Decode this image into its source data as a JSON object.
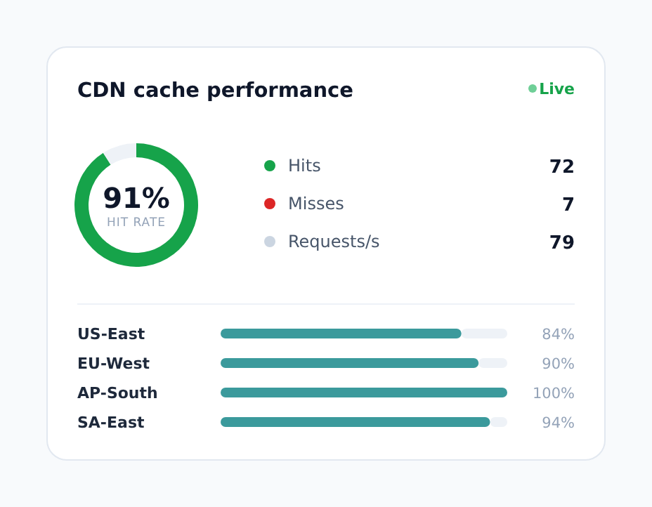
{
  "chart_data": [
    {
      "type": "donut",
      "title": "CDN cache performance",
      "categories": [
        null,
        null
      ],
      "values": [
        91,
        9
      ],
      "colors": [
        "#16a34a",
        "#eef2f7"
      ],
      "annotations": [
        "Live",
        "91%",
        "HIT RATE"
      ]
    },
    {
      "type": "other",
      "categories": [
        "Hits",
        "Misses",
        "Requests/s"
      ],
      "values": [
        72,
        7,
        79
      ],
      "colors": [
        "#16a34a",
        "#dc2626",
        "#cbd5e1"
      ],
      "data_labels": true
    },
    {
      "type": "bar",
      "orientation": "horizontal",
      "categories": [
        "US-East",
        "EU-West",
        "AP-South",
        "SA-East"
      ],
      "values": [
        84,
        90,
        100,
        94
      ],
      "value_labels": [
        "84%",
        "90%",
        "100%",
        "94%"
      ],
      "color": "#3b9a9c",
      "xlim": [
        0,
        100
      ]
    }
  ]
}
